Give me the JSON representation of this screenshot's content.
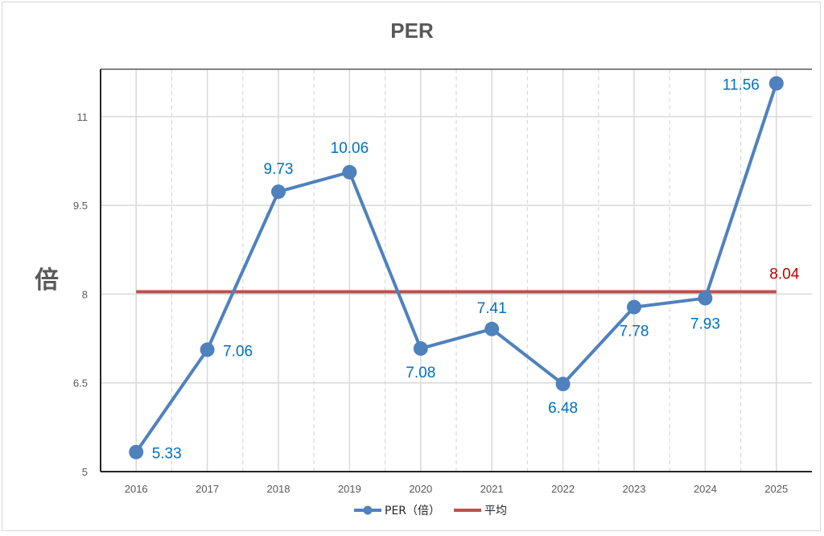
{
  "chart_data": {
    "type": "line",
    "title": "PER",
    "xlabel": "",
    "ylabel": "倍",
    "categories": [
      "2016",
      "2017",
      "2018",
      "2019",
      "2020",
      "2021",
      "2022",
      "2023",
      "2024",
      "2025"
    ],
    "series": [
      {
        "name": "PER（倍）",
        "color": "#4f81bd",
        "label_color": "#0070c0",
        "values": [
          5.33,
          7.06,
          9.73,
          10.06,
          7.08,
          7.41,
          6.48,
          7.78,
          7.93,
          11.56
        ],
        "labels": [
          "5.33",
          "7.06",
          "9.73",
          "10.06",
          "7.08",
          "7.41",
          "6.48",
          "7.78",
          "7.93",
          "11.56"
        ]
      },
      {
        "name": "平均",
        "color": "#c0504d",
        "label_color": "#c00000",
        "value": 8.04,
        "label": "8.04"
      }
    ],
    "yticks": [
      5,
      6.5,
      8,
      9.5,
      11
    ],
    "ytick_labels": [
      "5",
      "6.5",
      "8",
      "9.5",
      "11"
    ],
    "ylim": [
      5,
      11.8
    ],
    "grid": true,
    "legend": "bottom"
  }
}
